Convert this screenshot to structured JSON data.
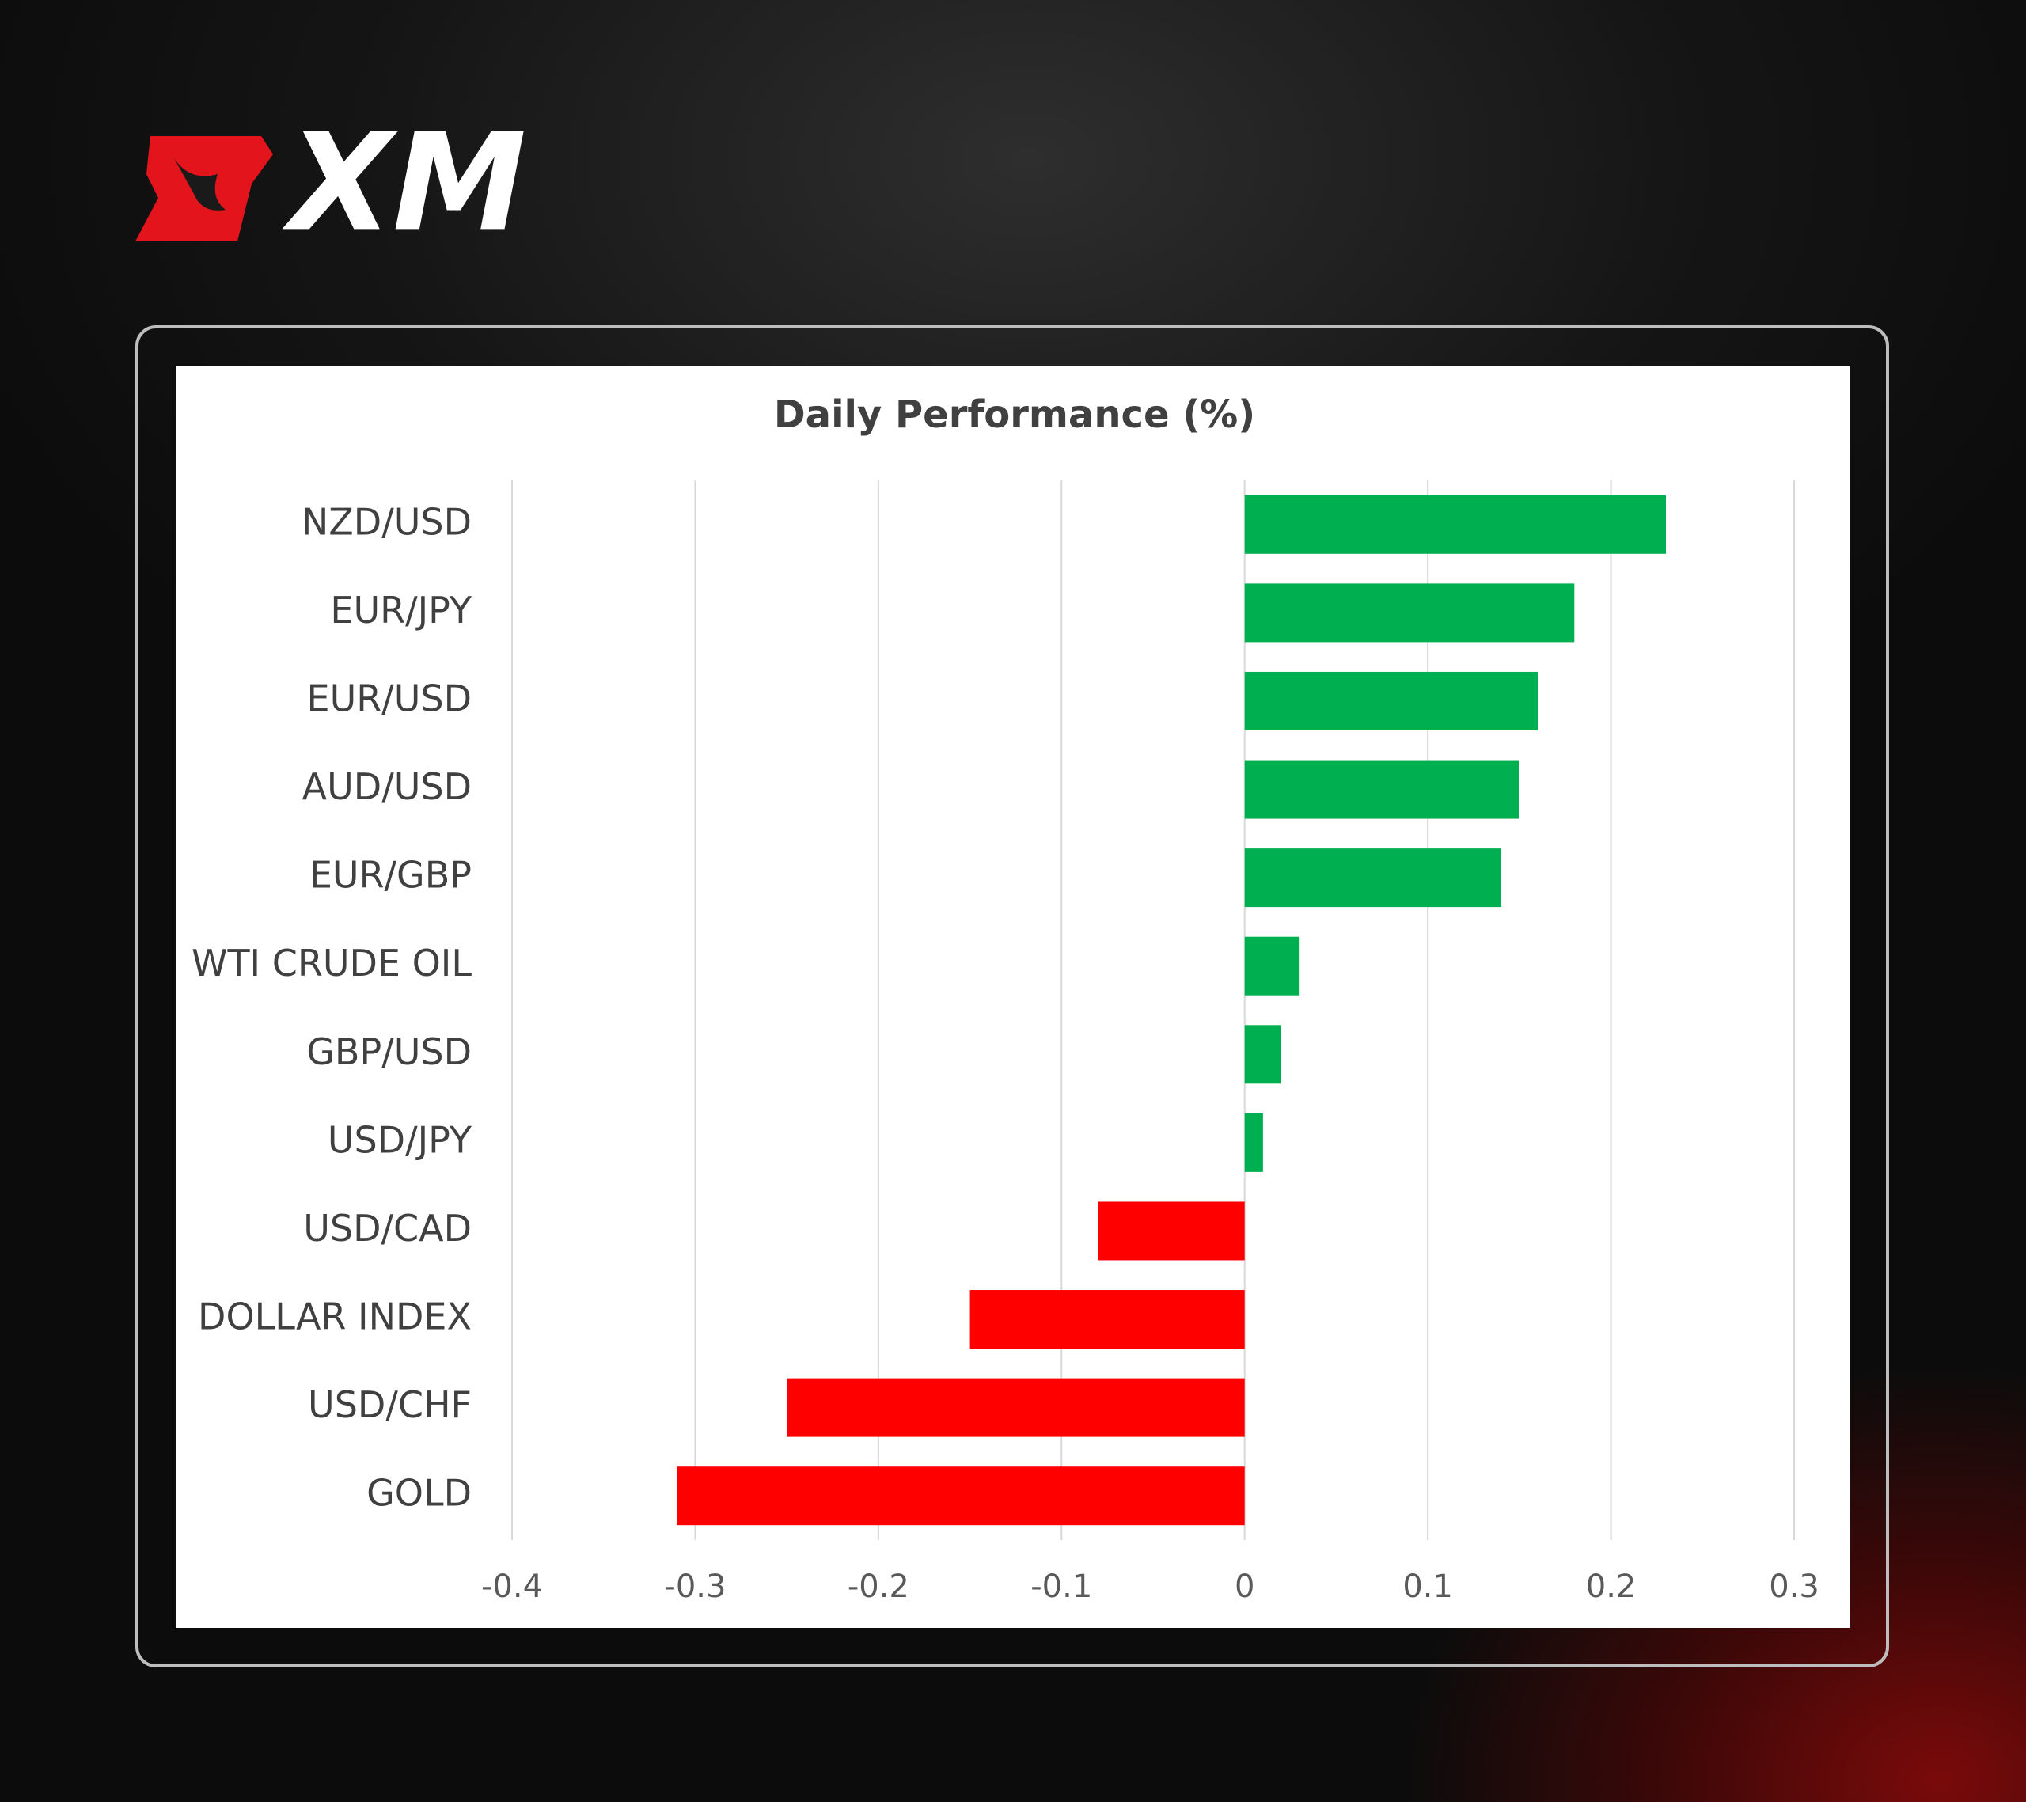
{
  "logo": "XM",
  "chart_data": {
    "type": "bar",
    "orientation": "horizontal",
    "title": "Daily Performance (%)",
    "categories": [
      "NZD/USD",
      "EUR/JPY",
      "EUR/USD",
      "AUD/USD",
      "EUR/GBP",
      "WTI CRUDE OIL",
      "GBP/USD",
      "USD/JPY",
      "USD/CAD",
      "DOLLAR INDEX",
      "USD/CHF",
      "GOLD"
    ],
    "values": [
      0.23,
      0.18,
      0.16,
      0.15,
      0.14,
      0.03,
      0.02,
      0.01,
      -0.08,
      -0.15,
      -0.25,
      -0.31
    ],
    "positive_color": "#00b050",
    "negative_color": "#ff0000",
    "xlim": [
      -0.4,
      0.3
    ],
    "xticks": [
      -0.4,
      -0.3,
      -0.2,
      -0.1,
      0,
      0.1,
      0.2,
      0.3
    ],
    "grid": true
  }
}
